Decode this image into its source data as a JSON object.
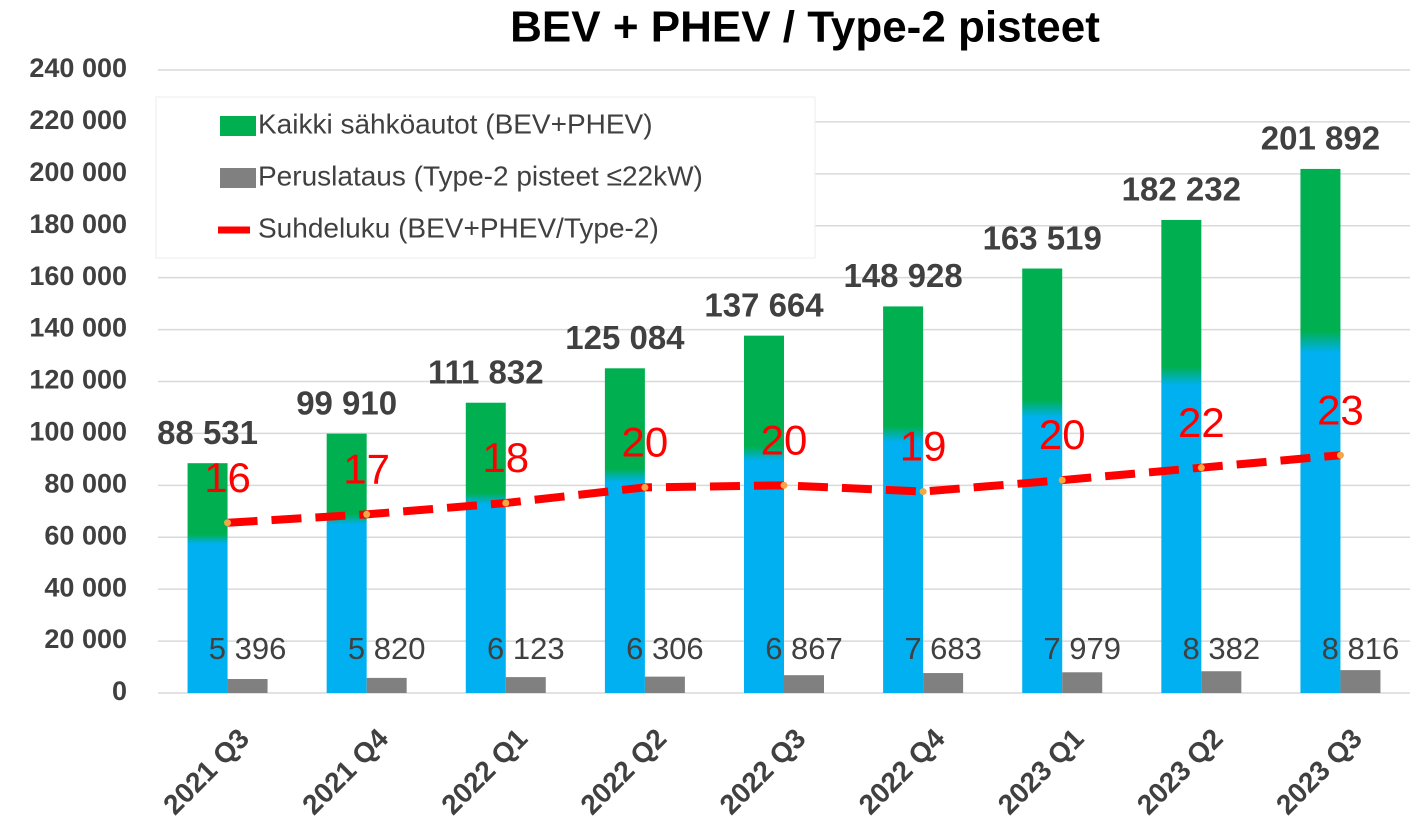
{
  "chart_data": {
    "type": "bar",
    "title": "BEV + PHEV / Type-2 pisteet",
    "categories": [
      "2021 Q3",
      "2021 Q4",
      "2022 Q1",
      "2022 Q2",
      "2022 Q3",
      "2022 Q4",
      "2023 Q1",
      "2023 Q2",
      "2023 Q3"
    ],
    "series": [
      {
        "name": "Kaikki sähköautot (BEV+PHEV)",
        "color": "#00b050",
        "values": [
          88531,
          99910,
          111832,
          125084,
          137664,
          148928,
          163519,
          182232,
          201892
        ],
        "value_labels": [
          "88 531",
          "99 910",
          "111 832",
          "125 084",
          "137 664",
          "148 928",
          "163 519",
          "182 232",
          "201 892"
        ]
      },
      {
        "name": "Peruslataus (Type-2 pisteet ≤22kW)",
        "color": "#808080",
        "values": [
          5396,
          5820,
          6123,
          6306,
          6867,
          7683,
          7979,
          8382,
          8816
        ],
        "value_labels": [
          "5 396",
          "5 820",
          "6 123",
          "6 306",
          "6 867",
          "7 683",
          "7 979",
          "8 382",
          "8 816"
        ]
      },
      {
        "name": "Suhdeluku (BEV+PHEV/Type-2)",
        "color": "#ff0000",
        "type": "line",
        "axis": "y2",
        "values": [
          16.4,
          17.2,
          18.3,
          19.8,
          20.0,
          19.4,
          20.5,
          21.7,
          22.9
        ],
        "value_labels": [
          "16",
          "17",
          "18",
          "20",
          "20",
          "19",
          "20",
          "22",
          "23"
        ]
      }
    ],
    "ylim": [
      0,
      240000
    ],
    "yticks": [
      {
        "value": 0,
        "label": "0"
      },
      {
        "value": 20000,
        "label": "20 000"
      },
      {
        "value": 40000,
        "label": "40 000"
      },
      {
        "value": 60000,
        "label": "60 000"
      },
      {
        "value": 80000,
        "label": "80 000"
      },
      {
        "value": 100000,
        "label": "100 000"
      },
      {
        "value": 120000,
        "label": "120 000"
      },
      {
        "value": 140000,
        "label": "140 000"
      },
      {
        "value": 160000,
        "label": "160 000"
      },
      {
        "value": 180000,
        "label": "180 000"
      },
      {
        "value": 200000,
        "label": "200 000"
      },
      {
        "value": 220000,
        "label": "220 000"
      },
      {
        "value": 240000,
        "label": "240 000"
      }
    ],
    "y2lim": [
      0,
      60
    ],
    "grid": true,
    "legend": "top-left"
  }
}
